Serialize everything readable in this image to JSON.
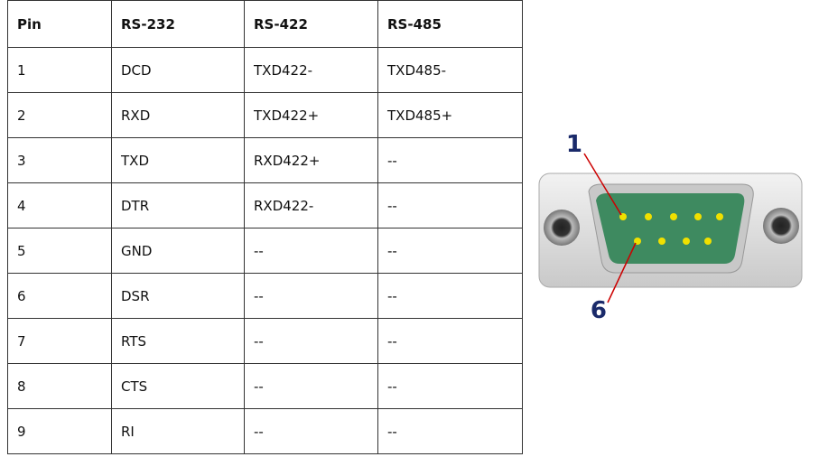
{
  "table": {
    "header": [
      "Pin",
      "RS-232",
      "RS-422",
      "RS-485"
    ],
    "rows": [
      [
        "1",
        "DCD",
        "TXD422-",
        "TXD485-"
      ],
      [
        "2",
        "RXD",
        "TXD422+",
        "TXD485+"
      ],
      [
        "3",
        "TXD",
        "RXD422+",
        "--"
      ],
      [
        "4",
        "DTR",
        "RXD422-",
        "--"
      ],
      [
        "5",
        "GND",
        "--",
        "--"
      ],
      [
        "6",
        "DSR",
        "--",
        "--"
      ],
      [
        "7",
        "RTS",
        "--",
        "--"
      ],
      [
        "8",
        "CTS",
        "--",
        "--"
      ],
      [
        "9",
        "RI",
        "--",
        "--"
      ]
    ]
  },
  "diagram": {
    "labels": [
      "1",
      "6"
    ]
  }
}
